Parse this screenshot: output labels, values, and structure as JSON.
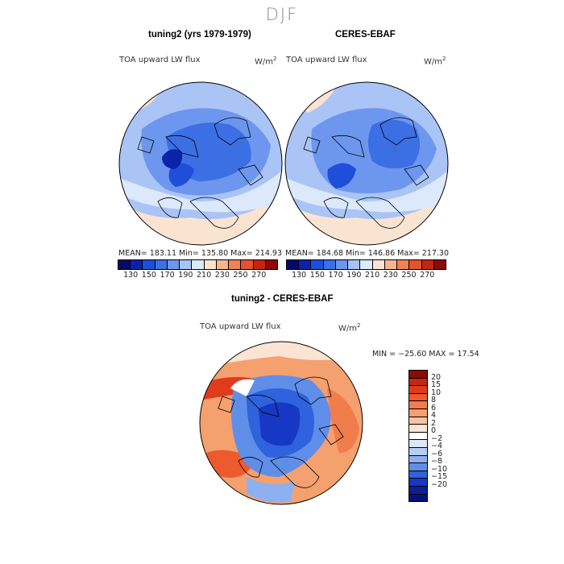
{
  "season": "DJF",
  "panels": [
    {
      "title": "tuning2 (yrs 1979-1979)",
      "variable": "TOA upward LW flux",
      "units": "W/m",
      "units_exp": "2",
      "stats": "MEAN= 183.11   Min= 135.80   Max= 214.93"
    },
    {
      "title": "CERES-EBAF",
      "variable": "TOA upward LW flux",
      "units": "W/m",
      "units_exp": "2",
      "stats": "MEAN= 184.68   Min= 146.86   Max= 217.30"
    }
  ],
  "abs_colorbar": {
    "labels": [
      "130",
      "150",
      "170",
      "190",
      "210",
      "230",
      "250",
      "270"
    ],
    "colors": [
      "#08086b",
      "#0a23a8",
      "#1f4fd9",
      "#3b6fe3",
      "#6d96ee",
      "#a7c3f5",
      "#dce8fb",
      "#fbe3d2",
      "#f6b58f",
      "#ef8257",
      "#e4532f",
      "#c42614",
      "#8e0a05"
    ]
  },
  "diff": {
    "title": "tuning2 - CERES-EBAF",
    "variable": "TOA upward LW flux",
    "units": "W/m",
    "units_exp": "2",
    "stats": "MIN = −25.60 MAX =  17.54",
    "colorbar": {
      "labels": [
        "20",
        "15",
        "10",
        "8",
        "6",
        "4",
        "2",
        "0",
        "−2",
        "−4",
        "−6",
        "−8",
        "−10",
        "−15",
        "−20"
      ],
      "colors": [
        "#8e0a05",
        "#c42614",
        "#e03b1c",
        "#ec5a2e",
        "#f17c4c",
        "#f5a06f",
        "#f8c3a0",
        "#fbe4d3",
        "#ffffff",
        "#dbe7fb",
        "#b5cdf6",
        "#8db0f0",
        "#5f8ee8",
        "#2f62dd",
        "#1638c4",
        "#0a1f9a",
        "#05117a"
      ]
    }
  }
}
